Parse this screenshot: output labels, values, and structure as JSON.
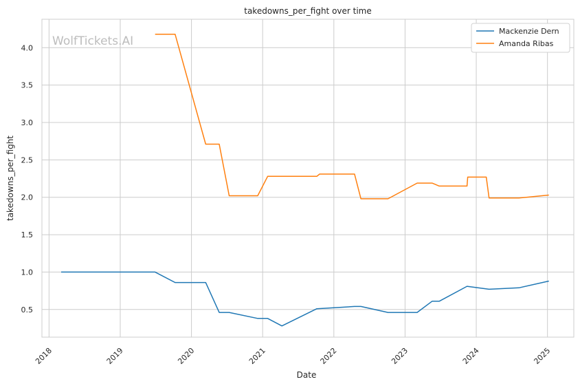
{
  "chart_data": {
    "type": "line",
    "title": "takedowns_per_fight over time",
    "xlabel": "Date",
    "ylabel": "takedowns_per_fight",
    "watermark": "WolfTickets.AI",
    "xlim": [
      2017.9,
      2025.37
    ],
    "ylim": [
      0.13,
      4.38
    ],
    "x_ticks": [
      2018,
      2019,
      2020,
      2021,
      2022,
      2023,
      2024,
      2025
    ],
    "x_tick_labels": [
      "2018",
      "2019",
      "2020",
      "2021",
      "2022",
      "2023",
      "2024",
      "2025"
    ],
    "y_ticks": [
      0.5,
      1.0,
      1.5,
      2.0,
      2.5,
      3.0,
      3.5,
      4.0
    ],
    "y_tick_labels": [
      "0.5",
      "1.0",
      "1.5",
      "2.0",
      "2.5",
      "3.0",
      "3.5",
      "4.0"
    ],
    "grid": true,
    "legend_position": "top-right",
    "series": [
      {
        "name": "Mackenzie Dern",
        "color": "#1f77b4",
        "x": [
          2018.17,
          2019.49,
          2019.77,
          2020.2,
          2020.39,
          2020.53,
          2020.93,
          2021.07,
          2021.27,
          2021.76,
          2022.29,
          2022.38,
          2022.76,
          2023.17,
          2023.38,
          2023.48,
          2023.87,
          2024.18,
          2024.6,
          2025.02
        ],
        "y": [
          1.0,
          1.0,
          0.86,
          0.86,
          0.46,
          0.46,
          0.38,
          0.38,
          0.28,
          0.51,
          0.54,
          0.54,
          0.46,
          0.46,
          0.61,
          0.61,
          0.81,
          0.77,
          0.79,
          0.88
        ]
      },
      {
        "name": "Amanda Ribas",
        "color": "#ff7f0e",
        "x": [
          2019.49,
          2019.77,
          2020.2,
          2020.39,
          2020.53,
          2020.93,
          2021.07,
          2021.76,
          2021.8,
          2022.29,
          2022.38,
          2022.76,
          2023.17,
          2023.38,
          2023.48,
          2023.87,
          2023.88,
          2024.14,
          2024.18,
          2024.6,
          2025.02
        ],
        "y": [
          4.18,
          4.18,
          2.71,
          2.71,
          2.02,
          2.02,
          2.28,
          2.28,
          2.31,
          2.31,
          1.98,
          1.98,
          2.19,
          2.19,
          2.15,
          2.15,
          2.27,
          2.27,
          1.99,
          1.99,
          2.03
        ]
      }
    ]
  }
}
